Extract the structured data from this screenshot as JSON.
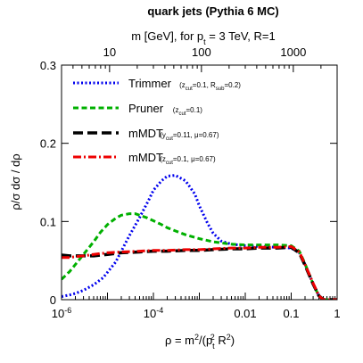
{
  "chart_data": {
    "type": "line",
    "title": "quark jets (Pythia 6 MC)",
    "x_scale": "log",
    "xlim": [
      1e-06,
      1
    ],
    "ylim": [
      0,
      0.3
    ],
    "x_ticks": [
      {
        "value": 1e-06,
        "base": "10",
        "exp": "-6"
      },
      {
        "value": 0.0001,
        "base": "10",
        "exp": "-4"
      },
      {
        "value": 0.01,
        "label": "0.01"
      },
      {
        "value": 0.1,
        "label": "0.1"
      },
      {
        "value": 1,
        "label": "1"
      }
    ],
    "y_ticks": [
      {
        "value": 0,
        "label": "0"
      },
      {
        "value": 0.1,
        "label": "0.1"
      },
      {
        "value": 0.2,
        "label": "0.2"
      },
      {
        "value": 0.3,
        "label": "0.3"
      }
    ],
    "xlabel_parts": {
      "pre": "ρ = m",
      "sup1": "2",
      "mid": "/(p",
      "sub": "t",
      "sup2": "2",
      "post": " R",
      "sup3": "2",
      "close": ")"
    },
    "ylabel": "ρ/σ dσ / dρ",
    "top_axis": {
      "label_parts": {
        "pre": "m [GeV], for p",
        "sub": "t",
        "post": " = 3 TeV, R=1"
      },
      "ticks": [
        {
          "value": 10,
          "label": "10"
        },
        {
          "value": 100,
          "label": "100"
        },
        {
          "value": 1000,
          "label": "1000"
        }
      ]
    },
    "legend_position": "top-left",
    "series": [
      {
        "name": "Trimmer",
        "color": "#0000ee",
        "dash": "2,2.5",
        "width": 3,
        "params": [
          {
            "t": "(z"
          },
          {
            "t": "cut",
            "sub": true
          },
          {
            "t": "=0.1, R"
          },
          {
            "t": "sub",
            "sub": true
          },
          {
            "t": "=0.2)"
          }
        ],
        "x": [
          1e-06,
          1.5e-06,
          2e-06,
          3e-06,
          5e-06,
          8e-06,
          1e-05,
          1.5e-05,
          2e-05,
          3e-05,
          5e-05,
          8e-05,
          0.0001,
          0.00015,
          0.0002,
          0.0003,
          0.0005,
          0.0008,
          0.001,
          0.0015,
          0.002,
          0.003,
          0.005,
          0.01,
          0.02,
          0.05,
          0.1,
          0.15,
          0.2,
          0.3,
          0.4,
          0.5,
          1
        ],
        "y": [
          0.004,
          0.006,
          0.008,
          0.012,
          0.019,
          0.028,
          0.035,
          0.048,
          0.062,
          0.082,
          0.105,
          0.128,
          0.14,
          0.152,
          0.158,
          0.159,
          0.152,
          0.135,
          0.12,
          0.098,
          0.085,
          0.075,
          0.071,
          0.069,
          0.068,
          0.067,
          0.066,
          0.06,
          0.045,
          0.02,
          0.005,
          0.0,
          0.0
        ]
      },
      {
        "name": "Pruner",
        "color": "#00b000",
        "dash": "6,3.5",
        "width": 3,
        "params": [
          {
            "t": "(z"
          },
          {
            "t": "cut",
            "sub": true
          },
          {
            "t": "=0.1)"
          }
        ],
        "x": [
          1e-06,
          1.5e-06,
          2e-06,
          3e-06,
          5e-06,
          7e-06,
          1e-05,
          1.5e-05,
          2e-05,
          3e-05,
          4e-05,
          5e-05,
          7e-05,
          0.0001,
          0.00015,
          0.0002,
          0.0003,
          0.0005,
          0.001,
          0.002,
          0.005,
          0.01,
          0.02,
          0.05,
          0.1,
          0.15,
          0.2,
          0.3,
          0.4,
          0.5,
          1
        ],
        "y": [
          0.026,
          0.036,
          0.045,
          0.058,
          0.074,
          0.086,
          0.096,
          0.104,
          0.108,
          0.11,
          0.11,
          0.108,
          0.105,
          0.101,
          0.096,
          0.092,
          0.088,
          0.083,
          0.078,
          0.074,
          0.071,
          0.07,
          0.07,
          0.07,
          0.069,
          0.062,
          0.046,
          0.02,
          0.005,
          0.0,
          0.0
        ]
      },
      {
        "name": "mMDT",
        "color": "#000000",
        "dash": "11,5",
        "width": 3.5,
        "params": [
          {
            "t": "(y"
          },
          {
            "t": "cut",
            "sub": true
          },
          {
            "t": "=0.11, μ=0.67)"
          }
        ],
        "x": [
          1e-06,
          1.5e-06,
          2e-06,
          3e-06,
          5e-06,
          1e-05,
          2e-05,
          5e-05,
          0.0001,
          0.0002,
          0.0005,
          0.001,
          0.002,
          0.005,
          0.01,
          0.02,
          0.05,
          0.1,
          0.15,
          0.2,
          0.3,
          0.4,
          0.5,
          1
        ],
        "y": [
          0.057,
          0.056,
          0.056,
          0.056,
          0.056,
          0.058,
          0.06,
          0.061,
          0.062,
          0.062,
          0.063,
          0.063,
          0.064,
          0.065,
          0.065,
          0.066,
          0.066,
          0.067,
          0.06,
          0.044,
          0.02,
          0.005,
          0.0,
          0.0
        ]
      },
      {
        "name": "mMDT",
        "color": "#ee0000",
        "dash": "9,3,2,3",
        "width": 3,
        "params": [
          {
            "t": "(z"
          },
          {
            "t": "cut",
            "sub": true
          },
          {
            "t": "=0.1, μ=0.67)"
          }
        ],
        "x": [
          1e-06,
          1.5e-06,
          2e-06,
          3e-06,
          5e-06,
          1e-05,
          2e-05,
          5e-05,
          0.0001,
          0.0002,
          0.0005,
          0.001,
          0.002,
          0.005,
          0.01,
          0.02,
          0.05,
          0.1,
          0.15,
          0.2,
          0.3,
          0.4,
          0.5,
          1
        ],
        "y": [
          0.054,
          0.054,
          0.055,
          0.056,
          0.058,
          0.06,
          0.061,
          0.062,
          0.063,
          0.063,
          0.064,
          0.064,
          0.065,
          0.066,
          0.066,
          0.067,
          0.067,
          0.068,
          0.061,
          0.045,
          0.021,
          0.005,
          0.0,
          0.0
        ]
      }
    ]
  }
}
